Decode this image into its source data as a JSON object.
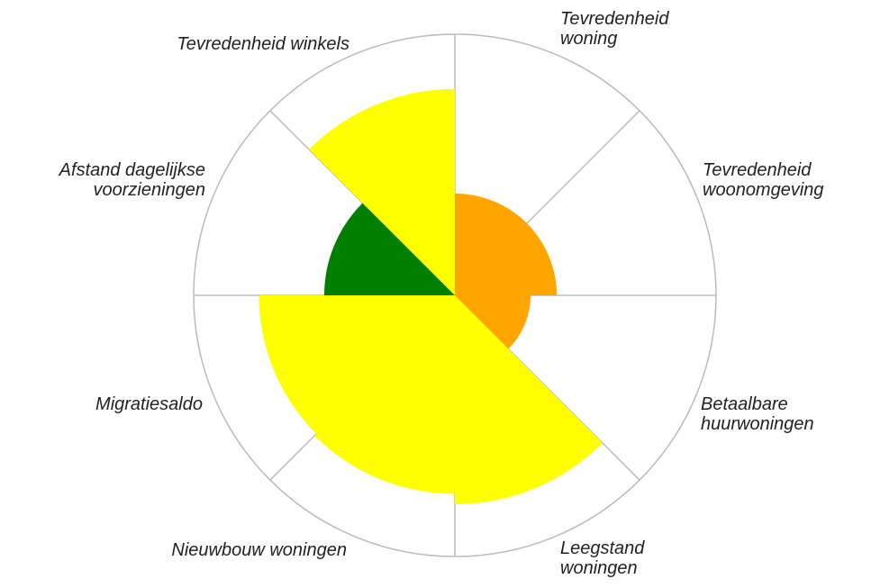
{
  "chart_data": {
    "type": "polar",
    "categories": [
      "Tevredenheid woning",
      "Tevredenheid woonomgeving",
      "Betaalbare huurwoningen",
      "Leegstand woningen",
      "Nieuwbouw woningen",
      "Migratiesaldo",
      "Afstand dagelijkse voorzieningen",
      "Tevredenheid winkels"
    ],
    "values": [
      39,
      39,
      29,
      80,
      76,
      75,
      50,
      79
    ],
    "colors": [
      "#ffa500",
      "#ffa500",
      "#ffa500",
      "#ffff00",
      "#ffff00",
      "#ffff00",
      "#008000",
      "#ffff00"
    ],
    "rlim": [
      0,
      100
    ]
  }
}
